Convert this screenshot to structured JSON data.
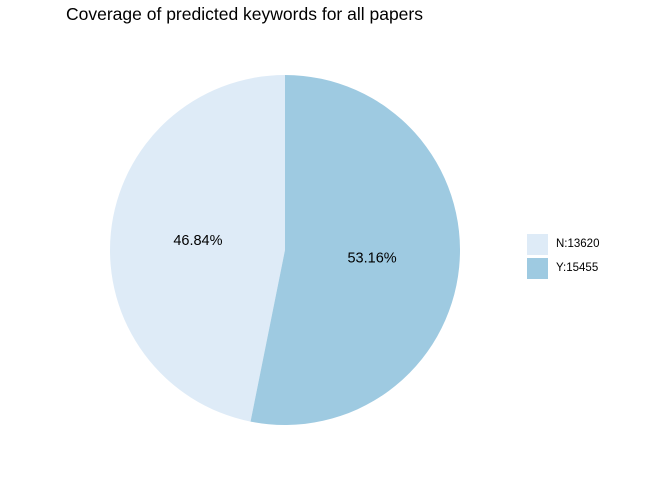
{
  "chart_data": {
    "type": "pie",
    "title": "Coverage of predicted keywords for all papers",
    "slices": [
      {
        "name": "N:13620",
        "value": 13620,
        "label": "46.84%",
        "color": "#deebf7"
      },
      {
        "name": "Y:15455",
        "value": 15455,
        "label": "53.16%",
        "color": "#9ecae1"
      }
    ],
    "legend_position": "right"
  }
}
